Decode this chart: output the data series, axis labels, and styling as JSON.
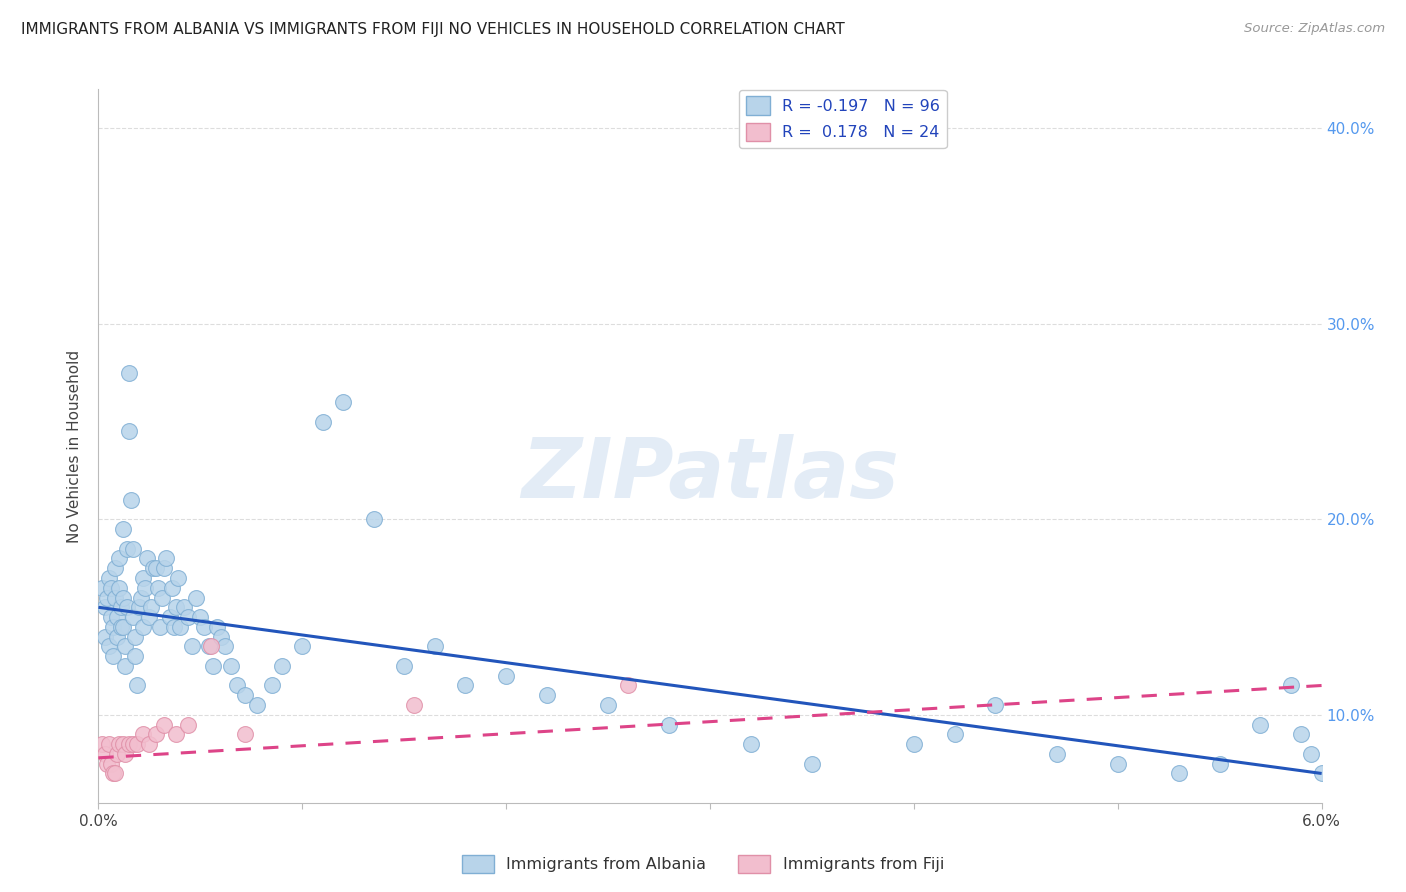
{
  "title": "IMMIGRANTS FROM ALBANIA VS IMMIGRANTS FROM FIJI NO VEHICLES IN HOUSEHOLD CORRELATION CHART",
  "source": "Source: ZipAtlas.com",
  "ylabel": "No Vehicles in Household",
  "xlim": [
    0.0,
    6.0
  ],
  "ylim": [
    5.5,
    42.0
  ],
  "albania_color": "#b8d4ea",
  "albania_edge": "#80afd4",
  "fiji_color": "#f2bece",
  "fiji_edge": "#e090a8",
  "albania_line_color": "#2255bb",
  "fiji_line_color": "#dd4488",
  "albania_R": -0.197,
  "albania_N": 96,
  "fiji_R": 0.178,
  "fiji_N": 24,
  "legend_label_albania": "Immigrants from Albania",
  "legend_label_fiji": "Immigrants from Fiji",
  "watermark_text": "ZIPatlas",
  "background_color": "#ffffff",
  "grid_color": "#dddddd",
  "right_ytick_color": "#5599ee",
  "albania_x": [
    0.02,
    0.03,
    0.03,
    0.04,
    0.05,
    0.05,
    0.06,
    0.06,
    0.07,
    0.07,
    0.08,
    0.08,
    0.09,
    0.09,
    0.1,
    0.1,
    0.11,
    0.11,
    0.12,
    0.12,
    0.12,
    0.13,
    0.13,
    0.14,
    0.14,
    0.15,
    0.15,
    0.16,
    0.17,
    0.17,
    0.18,
    0.18,
    0.19,
    0.2,
    0.21,
    0.22,
    0.22,
    0.23,
    0.24,
    0.25,
    0.26,
    0.27,
    0.28,
    0.29,
    0.3,
    0.31,
    0.32,
    0.33,
    0.35,
    0.36,
    0.37,
    0.38,
    0.39,
    0.4,
    0.42,
    0.44,
    0.46,
    0.48,
    0.5,
    0.52,
    0.54,
    0.56,
    0.58,
    0.6,
    0.62,
    0.65,
    0.68,
    0.72,
    0.78,
    0.85,
    0.9,
    1.0,
    1.1,
    1.2,
    1.35,
    1.5,
    1.65,
    1.8,
    2.0,
    2.2,
    2.5,
    2.8,
    3.2,
    3.5,
    4.0,
    4.2,
    4.4,
    4.7,
    5.0,
    5.3,
    5.5,
    5.7,
    5.85,
    5.9,
    5.95,
    6.0
  ],
  "albania_y": [
    16.5,
    15.5,
    14.0,
    16.0,
    17.0,
    13.5,
    16.5,
    15.0,
    14.5,
    13.0,
    17.5,
    16.0,
    15.0,
    14.0,
    18.0,
    16.5,
    15.5,
    14.5,
    19.5,
    16.0,
    14.5,
    13.5,
    12.5,
    18.5,
    15.5,
    27.5,
    24.5,
    21.0,
    18.5,
    15.0,
    14.0,
    13.0,
    11.5,
    15.5,
    16.0,
    17.0,
    14.5,
    16.5,
    18.0,
    15.0,
    15.5,
    17.5,
    17.5,
    16.5,
    14.5,
    16.0,
    17.5,
    18.0,
    15.0,
    16.5,
    14.5,
    15.5,
    17.0,
    14.5,
    15.5,
    15.0,
    13.5,
    16.0,
    15.0,
    14.5,
    13.5,
    12.5,
    14.5,
    14.0,
    13.5,
    12.5,
    11.5,
    11.0,
    10.5,
    11.5,
    12.5,
    13.5,
    25.0,
    26.0,
    20.0,
    12.5,
    13.5,
    11.5,
    12.0,
    11.0,
    10.5,
    9.5,
    8.5,
    7.5,
    8.5,
    9.0,
    10.5,
    8.0,
    7.5,
    7.0,
    7.5,
    9.5,
    11.5,
    9.0,
    8.0,
    7.0
  ],
  "fiji_x": [
    0.02,
    0.03,
    0.04,
    0.05,
    0.06,
    0.07,
    0.08,
    0.09,
    0.1,
    0.12,
    0.13,
    0.15,
    0.17,
    0.19,
    0.22,
    0.25,
    0.28,
    0.32,
    0.38,
    0.44,
    0.55,
    0.72,
    1.55,
    2.6
  ],
  "fiji_y": [
    8.5,
    8.0,
    7.5,
    8.5,
    7.5,
    7.0,
    7.0,
    8.0,
    8.5,
    8.5,
    8.0,
    8.5,
    8.5,
    8.5,
    9.0,
    8.5,
    9.0,
    9.5,
    9.0,
    9.5,
    13.5,
    9.0,
    10.5,
    11.5
  ],
  "albania_trend_x": [
    0.0,
    6.0
  ],
  "albania_trend_y": [
    15.5,
    7.0
  ],
  "fiji_trend_x": [
    0.0,
    6.0
  ],
  "fiji_trend_y": [
    7.8,
    11.5
  ]
}
